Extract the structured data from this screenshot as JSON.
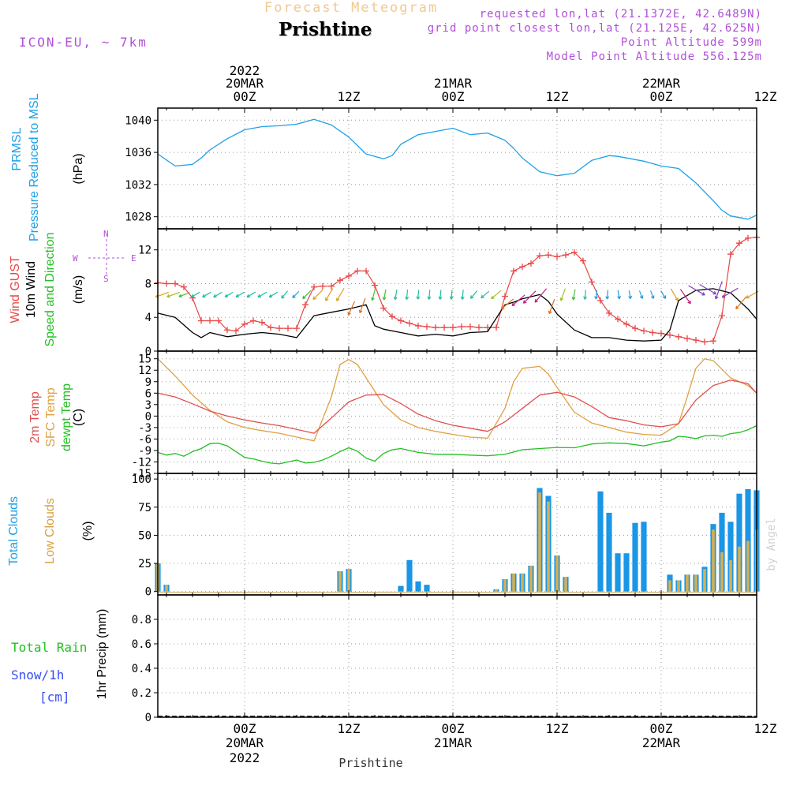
{
  "header": {
    "product": "Forecast Meteogram",
    "location": "Prishtine",
    "model": "ICON-EU, ~ 7km",
    "requested": "requested lon,lat (21.1372E, 42.6489N)",
    "grid": "grid point closest lon,lat (21.125E, 42.625N)",
    "point_alt": "Point Altitude 599m",
    "model_alt": "Model Point Altitude 556.125m"
  },
  "time_axis": {
    "top_labels": [
      {
        "line1": "2022",
        "line2": "20MAR",
        "line3": "00Z"
      },
      {
        "line1": "",
        "line2": "",
        "line3": "12Z"
      },
      {
        "line1": "",
        "line2": "21MAR",
        "line3": "00Z"
      },
      {
        "line1": "",
        "line2": "",
        "line3": "12Z"
      },
      {
        "line1": "",
        "line2": "22MAR",
        "line3": "00Z"
      },
      {
        "line1": "",
        "line2": "",
        "line3": "12Z"
      }
    ],
    "bottom_labels": [
      {
        "line1": "00Z",
        "line2": "20MAR",
        "line3": "2022"
      },
      {
        "line1": "12Z",
        "line2": "",
        "line3": ""
      },
      {
        "line1": "00Z",
        "line2": "21MAR",
        "line3": ""
      },
      {
        "line1": "12Z",
        "line2": "",
        "line3": ""
      },
      {
        "line1": "00Z",
        "line2": "22MAR",
        "line3": ""
      },
      {
        "line1": "12Z",
        "line2": "",
        "line3": ""
      }
    ],
    "footer": "Prishtine",
    "credit": "by Angel"
  },
  "labels": {
    "prmsl": "PRMSL",
    "prmsl2": "Pressure Reduced to MSL",
    "hpa": "(hPa)",
    "gust": "Wind GUST",
    "wind10": "10m Wind",
    "speeddir": "Speed and Direction",
    "ms": "(m/s)",
    "compass_n": "N",
    "compass_s": "S",
    "compass_w": "W",
    "compass_e": "E",
    "t2m": "2m Temp",
    "sfc": "SFC Temp",
    "dewpt": "dewpt Temp",
    "c": "(C)",
    "total_clouds": "Total Clouds",
    "low_clouds": "Low Clouds",
    "pct": "(%)",
    "total_rain": "Total  Rain",
    "snow": "Snow/1h",
    "cm": "[cm]",
    "precip": "1hr Precip (mm)"
  },
  "colors": {
    "pressure": "#1ea0e6",
    "gust": "#e84848",
    "wind": "#000000",
    "t2m": "#e05050",
    "sfc": "#e0a040",
    "dewpt": "#22c022",
    "total_clouds": "#1a96e6",
    "low_clouds": "#d8b050",
    "purple": "#b04fd8",
    "rain": "#22c022",
    "snow": "#3a4ef0"
  },
  "chart_data": [
    {
      "type": "line",
      "title": "PRMSL Pressure Reduced to MSL",
      "ylabel": "(hPa)",
      "ylim": [
        1026.5,
        1041.5
      ],
      "yticks": [
        1028,
        1032,
        1036,
        1040
      ],
      "xlim_hours": [
        -10,
        59
      ],
      "x_hours": [
        -10,
        -8,
        -6,
        -5,
        -4,
        -2,
        0,
        2,
        4,
        6,
        8,
        10,
        12,
        14,
        16,
        17,
        18,
        20,
        22,
        24,
        26,
        28,
        30,
        31,
        32,
        34,
        36,
        38,
        40,
        42,
        43,
        44,
        46,
        48,
        50,
        52,
        54,
        55,
        56,
        58,
        59
      ],
      "series": [
        {
          "name": "Pressure",
          "values": [
            1035.8,
            1034.3,
            1034.5,
            1035.3,
            1036.3,
            1037.7,
            1038.8,
            1039.2,
            1039.3,
            1039.5,
            1040.1,
            1039.4,
            1037.9,
            1035.8,
            1035.2,
            1035.6,
            1037.0,
            1038.2,
            1038.6,
            1039.0,
            1038.2,
            1038.4,
            1037.5,
            1036.5,
            1035.3,
            1033.6,
            1033.1,
            1033.4,
            1035.0,
            1035.6,
            1035.5,
            1035.3,
            1034.9,
            1034.3,
            1034.0,
            1032.2,
            1030.0,
            1028.8,
            1028.1,
            1027.7,
            1028.2
          ]
        }
      ]
    },
    {
      "type": "line",
      "title": "Wind GUST / 10m Wind Speed and Direction",
      "ylabel": "(m/s)",
      "ylim": [
        0,
        14.5
      ],
      "yticks": [
        0,
        4,
        8,
        12
      ],
      "xlim_hours": [
        -10,
        59
      ],
      "gust_x": [
        -10,
        -9,
        -8,
        -7,
        -6,
        -5,
        -4,
        -3,
        -2,
        -1,
        0,
        1,
        2,
        3,
        4,
        5,
        6,
        7,
        8,
        9,
        10,
        11,
        12,
        13,
        14,
        15,
        16,
        17,
        18,
        19,
        20,
        21,
        22,
        23,
        24,
        25,
        26,
        27,
        28,
        29,
        30,
        31,
        32,
        33,
        34,
        35,
        36,
        37,
        38,
        39,
        40,
        41,
        42,
        43,
        44,
        45,
        46,
        47,
        48,
        49,
        50,
        51,
        52,
        53,
        54,
        55,
        56,
        57,
        58,
        59
      ],
      "series": [
        {
          "name": "Wind GUST",
          "values": [
            8.1,
            8.0,
            8.0,
            7.6,
            6.3,
            3.6,
            3.6,
            3.6,
            2.5,
            2.4,
            3.2,
            3.6,
            3.4,
            2.8,
            2.7,
            2.7,
            2.7,
            5.5,
            7.6,
            7.7,
            7.7,
            8.4,
            8.9,
            9.5,
            9.5,
            7.8,
            5.1,
            4.1,
            3.6,
            3.3,
            3.0,
            2.9,
            2.8,
            2.8,
            2.8,
            2.9,
            2.9,
            2.8,
            2.8,
            2.8,
            6.5,
            9.5,
            10.0,
            10.4,
            11.3,
            11.4,
            11.2,
            11.4,
            11.7,
            10.7,
            8.2,
            6.0,
            4.5,
            3.8,
            3.2,
            2.7,
            2.4,
            2.2,
            2.1,
            1.9,
            1.7,
            1.5,
            1.3,
            1.1,
            1.2,
            4.2,
            11.5,
            12.8,
            13.4,
            13.5
          ]
        },
        {
          "name": "10m Wind",
          "x": [
            -10,
            -8,
            -6,
            -5,
            -4,
            -2,
            0,
            2,
            4,
            6,
            8,
            10,
            12,
            14,
            15,
            16,
            18,
            20,
            22,
            24,
            26,
            28,
            30,
            31,
            32,
            34,
            35,
            36,
            38,
            40,
            42,
            44,
            46,
            48,
            49,
            50,
            52,
            54,
            56,
            58,
            59
          ],
          "values": [
            4.5,
            4.0,
            2.2,
            1.6,
            2.2,
            1.7,
            2.0,
            2.2,
            2.0,
            1.6,
            4.2,
            4.6,
            5.0,
            5.5,
            3.0,
            2.6,
            2.2,
            1.8,
            2.0,
            1.8,
            2.2,
            2.3,
            5.5,
            5.8,
            6.2,
            6.7,
            5.9,
            4.4,
            2.5,
            1.6,
            1.6,
            1.3,
            1.2,
            1.3,
            2.5,
            6.0,
            7.2,
            7.4,
            6.9,
            5.0,
            3.8
          ]
        }
      ],
      "wind_dir_deg": [
        70,
        70,
        70,
        60,
        60,
        60,
        60,
        60,
        60,
        60,
        60,
        40,
        45,
        45,
        45,
        30,
        30,
        25,
        20,
        15,
        10,
        10,
        5,
        5,
        5,
        5,
        5,
        5,
        40,
        50,
        50,
        50,
        50,
        45,
        40,
        20,
        20,
        10,
        5,
        5,
        5,
        350,
        350,
        340,
        340,
        330,
        330,
        325,
        300,
        300,
        20,
        60,
        40,
        60
      ]
    },
    {
      "type": "line",
      "title": "2m Temp / SFC Temp / dewpt Temp",
      "ylabel": "(C)",
      "ylim": [
        -15,
        17
      ],
      "yticks": [
        -15,
        -12,
        -9,
        -6,
        -3,
        0,
        3,
        6,
        9,
        12,
        15
      ],
      "xlim_hours": [
        -10,
        59
      ],
      "series": [
        {
          "name": "2m Temp",
          "x": [
            -10,
            -8,
            -6,
            -4,
            -2,
            0,
            2,
            4,
            6,
            8,
            10,
            12,
            14,
            16,
            18,
            20,
            22,
            24,
            26,
            28,
            30,
            32,
            34,
            36,
            38,
            40,
            42,
            44,
            46,
            48,
            50,
            52,
            54,
            56,
            58,
            59
          ],
          "values": [
            6.0,
            5.0,
            3.2,
            1.3,
            0.0,
            -1.0,
            -1.8,
            -2.5,
            -3.5,
            -4.5,
            -0.5,
            3.7,
            5.5,
            5.6,
            3.3,
            0.5,
            -1.2,
            -2.4,
            -3.2,
            -4.0,
            -1.5,
            2.0,
            5.5,
            6.2,
            5.0,
            2.5,
            -0.4,
            -1.2,
            -2.3,
            -2.8,
            -2.0,
            4.2,
            8.0,
            9.4,
            8.5,
            6.0
          ]
        },
        {
          "name": "SFC Temp",
          "x": [
            -10,
            -8,
            -6,
            -4,
            -2,
            0,
            2,
            4,
            6,
            8,
            10,
            11,
            12,
            13,
            14,
            16,
            18,
            20,
            22,
            24,
            26,
            28,
            30,
            31,
            32,
            34,
            35,
            36,
            38,
            40,
            42,
            44,
            46,
            48,
            50,
            51,
            52,
            53,
            54,
            56,
            58,
            59
          ],
          "values": [
            15.0,
            10.5,
            5.5,
            1.5,
            -1.5,
            -3.0,
            -3.8,
            -4.5,
            -5.5,
            -6.5,
            5.0,
            13.5,
            14.8,
            13.5,
            10.0,
            3.0,
            -1.0,
            -3.0,
            -4.0,
            -4.8,
            -5.5,
            -5.8,
            2.0,
            9.0,
            12.5,
            13.0,
            11.0,
            7.5,
            1.0,
            -1.8,
            -3.0,
            -4.2,
            -4.8,
            -5.0,
            -2.0,
            5.0,
            12.5,
            15.0,
            14.5,
            10.0,
            8.0,
            6.0
          ]
        },
        {
          "name": "dewpt Temp",
          "x": [
            -10,
            -9,
            -8,
            -7,
            -6,
            -5,
            -4,
            -3,
            -2,
            -1,
            0,
            1,
            2,
            3,
            4,
            5,
            6,
            7,
            8,
            9,
            10,
            11,
            12,
            13,
            14,
            15,
            16,
            17,
            18,
            20,
            22,
            24,
            26,
            28,
            30,
            32,
            34,
            36,
            38,
            40,
            42,
            44,
            46,
            48,
            49,
            50,
            51,
            52,
            53,
            54,
            55,
            56,
            57,
            58,
            59
          ],
          "values": [
            -9.5,
            -10.2,
            -9.8,
            -10.5,
            -9.3,
            -8.5,
            -7.2,
            -7.1,
            -7.8,
            -9.3,
            -10.8,
            -11.2,
            -11.8,
            -12.3,
            -12.5,
            -12.0,
            -11.5,
            -12.3,
            -12.1,
            -11.5,
            -10.5,
            -9.3,
            -8.3,
            -9.2,
            -11.0,
            -11.8,
            -9.8,
            -8.8,
            -8.5,
            -9.5,
            -10.0,
            -10.0,
            -10.2,
            -10.4,
            -10.0,
            -8.8,
            -8.5,
            -8.2,
            -8.3,
            -7.3,
            -7.0,
            -7.2,
            -7.8,
            -6.8,
            -6.5,
            -5.3,
            -5.5,
            -5.9,
            -5.2,
            -5.0,
            -5.3,
            -4.6,
            -4.3,
            -3.6,
            -2.5
          ]
        }
      ]
    },
    {
      "type": "bar",
      "title": "Total Clouds / Low Clouds",
      "ylabel": "(%)",
      "ylim": [
        -3,
        105
      ],
      "yticks": [
        0,
        25,
        50,
        75,
        100
      ],
      "xlim_hours": [
        -10,
        59
      ],
      "x_hours": [
        -10,
        -9,
        11,
        12,
        18,
        19,
        20,
        21,
        29,
        30,
        31,
        32,
        33,
        34,
        35,
        36,
        37,
        38,
        39,
        40,
        41,
        42,
        43,
        44,
        45,
        46,
        47,
        48,
        49,
        50,
        51,
        52,
        53,
        54,
        55,
        56,
        57,
        58,
        59
      ],
      "series": [
        {
          "name": "Total Clouds",
          "values": [
            25,
            6,
            18,
            20,
            5,
            28,
            9,
            6,
            2,
            11,
            16,
            16,
            23,
            92,
            85,
            32,
            13,
            0,
            0,
            0,
            89,
            70,
            34,
            34,
            61,
            62,
            0,
            0,
            15,
            10,
            15,
            15,
            22,
            60,
            70,
            62,
            87,
            91,
            90
          ]
        },
        {
          "name": "Low Clouds",
          "values": [
            25,
            6,
            18,
            20,
            0,
            0,
            0,
            0,
            2,
            11,
            16,
            16,
            23,
            88,
            80,
            32,
            13,
            0,
            0,
            0,
            0,
            0,
            0,
            0,
            0,
            0,
            0,
            0,
            10,
            10,
            15,
            15,
            20,
            55,
            35,
            28,
            40,
            45,
            55
          ]
        }
      ]
    },
    {
      "type": "line",
      "title": "Total Rain / Snow 1hr Precip",
      "ylabel": "1hr Precip (mm)",
      "ylim": [
        0,
        1.0
      ],
      "yticks": [
        0,
        0.2,
        0.4,
        0.6,
        0.8
      ],
      "xlim_hours": [
        -10,
        59
      ],
      "series": [
        {
          "name": "Total Rain",
          "values": []
        },
        {
          "name": "Snow/1h",
          "values": []
        }
      ]
    }
  ]
}
